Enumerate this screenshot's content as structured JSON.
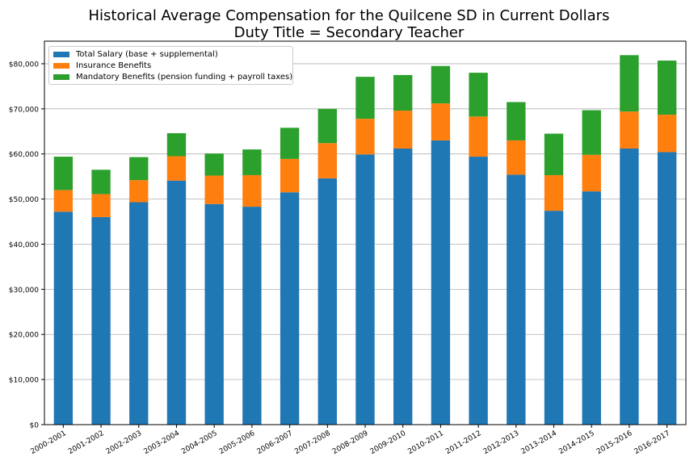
{
  "chart_data": {
    "type": "bar",
    "stacked": true,
    "title": "Historical Average Compensation for the Quilcene SD in Current Dollars",
    "subtitle": "Duty Title = Secondary Teacher",
    "xlabel": "",
    "ylabel": "",
    "ylim": [
      0,
      85000
    ],
    "yticks": [
      0,
      10000,
      20000,
      30000,
      40000,
      50000,
      60000,
      70000,
      80000
    ],
    "ytick_labels": [
      "$0",
      "$10,000",
      "$20,000",
      "$30,000",
      "$40,000",
      "$50,000",
      "$60,000",
      "$70,000",
      "$80,000"
    ],
    "grid": "y",
    "legend_position": "top-left",
    "categories": [
      "2000-2001",
      "2001-2002",
      "2002-2003",
      "2003-2004",
      "2004-2005",
      "2005-2006",
      "2006-2007",
      "2007-2008",
      "2008-2009",
      "2009-2010",
      "2010-2011",
      "2011-2012",
      "2012-2013",
      "2013-2014",
      "2014-2015",
      "2015-2016",
      "2016-2017"
    ],
    "series": [
      {
        "name": "Total Salary (base + supplemental)",
        "color": "#1f77b4",
        "values": [
          47200,
          46000,
          49300,
          54100,
          48900,
          48300,
          51500,
          54600,
          59900,
          61200,
          63000,
          59400,
          55400,
          47400,
          51700,
          61200,
          60400
        ]
      },
      {
        "name": "Insurance Benefits",
        "color": "#ff7f0e",
        "values": [
          4800,
          5100,
          4900,
          5400,
          6300,
          7000,
          7400,
          7800,
          7900,
          8400,
          8200,
          8900,
          7600,
          7900,
          8100,
          8200,
          8300
        ]
      },
      {
        "name": "Mandatory Benefits (pension funding + payroll taxes)",
        "color": "#2ca02c",
        "values": [
          7400,
          5400,
          5100,
          5100,
          4900,
          5700,
          6900,
          7600,
          9300,
          7900,
          8300,
          9700,
          8500,
          9200,
          9900,
          12500,
          12000
        ]
      }
    ]
  }
}
